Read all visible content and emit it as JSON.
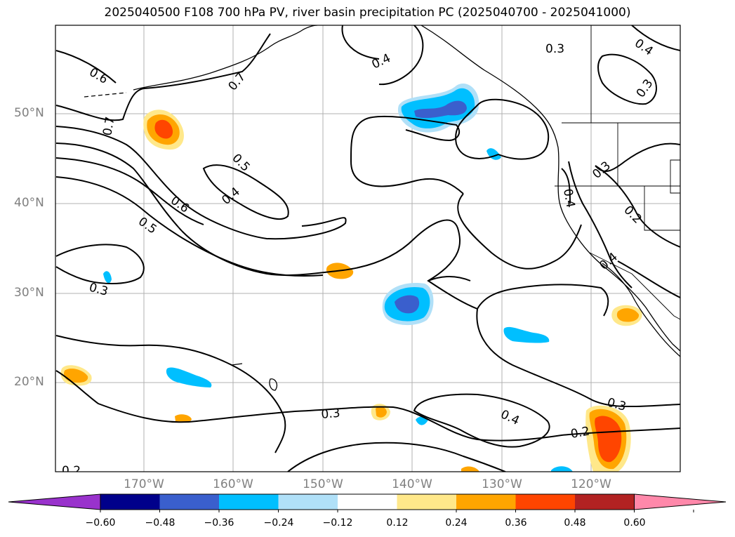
{
  "title": "2025040500 F108 700 hPa PV, river basin precipitation PC (2025040700 - 2025041000)",
  "lat_labels": [
    "50°N",
    "40°N",
    "30°N",
    "20°N"
  ],
  "lon_labels": [
    "170°W",
    "160°W",
    "150°W",
    "140°W",
    "130°W",
    "120°W"
  ],
  "contour_labels": [
    "0.6",
    "0.7",
    "0.7",
    "0.5",
    "0.6",
    "0.4",
    "0.5",
    "0.4",
    "0.3",
    "0.4",
    "0.3",
    "0.3",
    "0.4",
    "0.2",
    "0.4",
    "0.3",
    "0.4",
    "0.2",
    "0.3",
    "0.2"
  ],
  "colorbar": {
    "ticks": [
      "−0.60",
      "−0.48",
      "−0.36",
      "−0.24",
      "−0.12",
      "0.12",
      "0.24",
      "0.36",
      "0.48",
      "0.60"
    ],
    "colors": [
      "#9932cc",
      "#00008b",
      "#3a5fcd",
      "#00bfff",
      "#b0e0f8",
      "#ffffff",
      "#ffe88a",
      "#ffa500",
      "#ff4500",
      "#b22222",
      "#ff88aa"
    ],
    "under_color": "#9932cc",
    "over_color": "#ff88aa"
  },
  "colors": {
    "grid": "#b0b0b0",
    "contour": "#000000",
    "coast": "#000000",
    "tick_label": "#808080"
  }
}
